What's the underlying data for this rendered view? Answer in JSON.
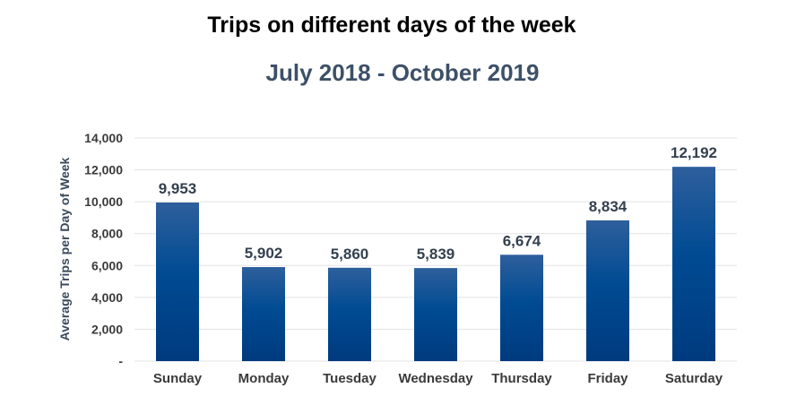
{
  "chart_data": {
    "type": "bar",
    "title": "Trips on different days of the week",
    "subtitle": "July 2018 - October 2019",
    "xlabel": "",
    "ylabel": "Average Trips per Day of Week",
    "categories": [
      "Sunday",
      "Monday",
      "Tuesday",
      "Wednesday",
      "Thursday",
      "Friday",
      "Saturday"
    ],
    "values": [
      9953,
      5902,
      5860,
      5839,
      6674,
      8834,
      12192
    ],
    "data_labels": [
      "9,953",
      "5,902",
      "5,860",
      "5,839",
      "6,674",
      "8,834",
      "12,192"
    ],
    "ylim": [
      0,
      14000
    ],
    "yticks": [
      0,
      2000,
      4000,
      6000,
      8000,
      10000,
      12000,
      14000
    ],
    "ytick_labels": [
      "-",
      "2,000",
      "4,000",
      "6,000",
      "8,000",
      "10,000",
      "12,000",
      "14,000"
    ],
    "grid": true,
    "legend": "none",
    "colors": {
      "bar_top": "#2e5f9c",
      "bar_mid": "#004b93",
      "bar_bottom": "#003a7e",
      "grid": "#e3e3e3"
    }
  }
}
